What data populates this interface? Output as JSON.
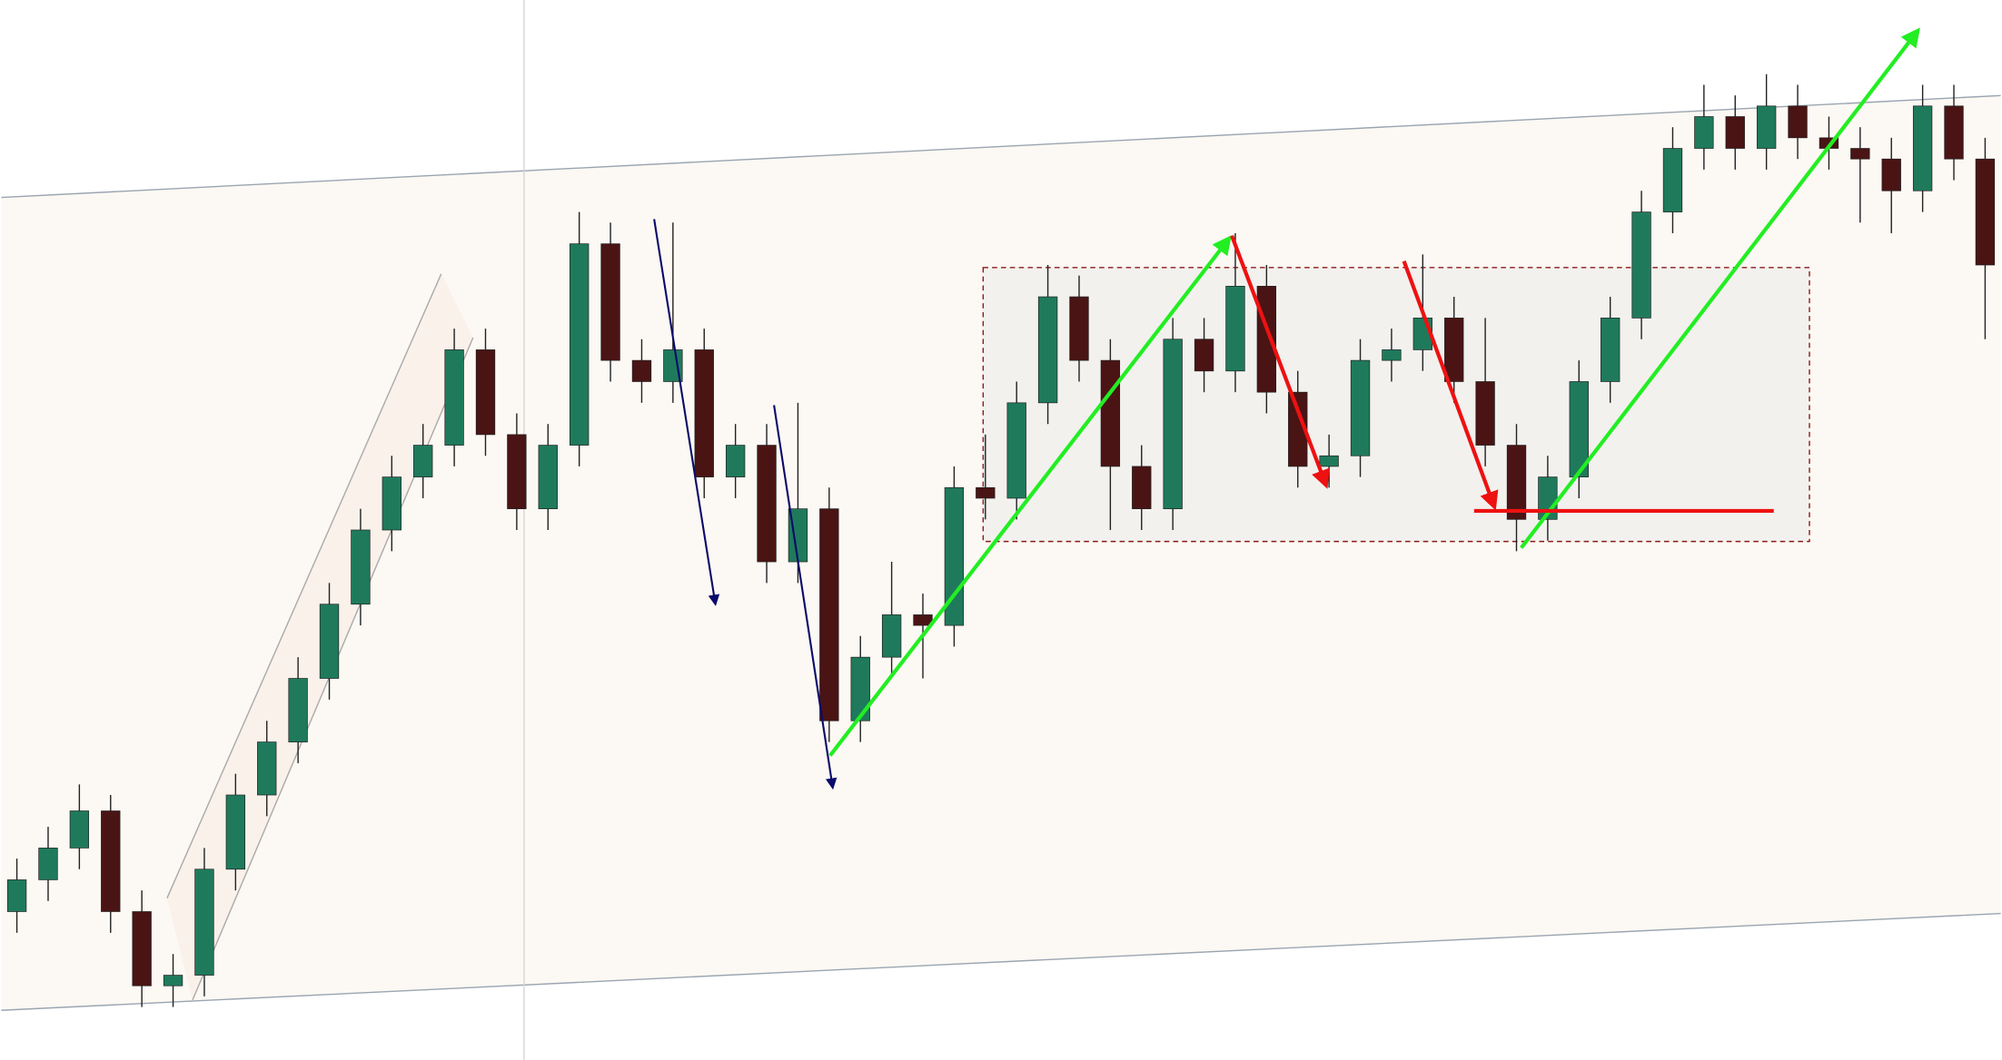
{
  "chart_data": {
    "type": "candlestick",
    "ohlc": [
      [
        14,
        19,
        12,
        17
      ],
      [
        17,
        22,
        15,
        20
      ],
      [
        20,
        26,
        18,
        23.5
      ],
      [
        23.5,
        25,
        12,
        14
      ],
      [
        14,
        16,
        5,
        7
      ],
      [
        7,
        10,
        5,
        8
      ],
      [
        8,
        20,
        6,
        18
      ],
      [
        18,
        27,
        16,
        25
      ],
      [
        25,
        32,
        23,
        30
      ],
      [
        30,
        38,
        28,
        36
      ],
      [
        36,
        45,
        34,
        43
      ],
      [
        43,
        52,
        41,
        50
      ],
      [
        50,
        57,
        48,
        55
      ],
      [
        55,
        60,
        53,
        58
      ],
      [
        58,
        69,
        56,
        67
      ],
      [
        67,
        69,
        57,
        59
      ],
      [
        59,
        61,
        50,
        52
      ],
      [
        52,
        60,
        50,
        58
      ],
      [
        58,
        80,
        56,
        77
      ],
      [
        77,
        79,
        64,
        66
      ],
      [
        66,
        68,
        62,
        64
      ],
      [
        64,
        79,
        62,
        67
      ],
      [
        67,
        69,
        53,
        55
      ],
      [
        55,
        60,
        53,
        58
      ],
      [
        58,
        60,
        45,
        47
      ],
      [
        47,
        62,
        45,
        52
      ],
      [
        52,
        54,
        30,
        32
      ],
      [
        32,
        40,
        30,
        38
      ],
      [
        38,
        47,
        36,
        42
      ],
      [
        42,
        44,
        36,
        41
      ],
      [
        41,
        56,
        39,
        54
      ],
      [
        54,
        59,
        51,
        53
      ],
      [
        53,
        64,
        51,
        62
      ],
      [
        62,
        75,
        60,
        72
      ],
      [
        72,
        74,
        64,
        66
      ],
      [
        66,
        68,
        50,
        56
      ],
      [
        56,
        58,
        50,
        52
      ],
      [
        52,
        70,
        50,
        68
      ],
      [
        68,
        70,
        63,
        65
      ],
      [
        65,
        78,
        63,
        73
      ],
      [
        73,
        75,
        61,
        63
      ],
      [
        63,
        65,
        54,
        56
      ],
      [
        56,
        59,
        54,
        57
      ],
      [
        57,
        68,
        55,
        66
      ],
      [
        66,
        69,
        64,
        67
      ],
      [
        67,
        76,
        65,
        70
      ],
      [
        70,
        72,
        62,
        64
      ],
      [
        64,
        70,
        56,
        58
      ],
      [
        58,
        60,
        48,
        51
      ],
      [
        51,
        57,
        49,
        55
      ],
      [
        55,
        66,
        53,
        64
      ],
      [
        64,
        72,
        62,
        70
      ],
      [
        70,
        82,
        68,
        80
      ],
      [
        80,
        88,
        78,
        86
      ],
      [
        86,
        92,
        84,
        89
      ],
      [
        89,
        91,
        84,
        86
      ],
      [
        86,
        93,
        84,
        90
      ],
      [
        90,
        92,
        85,
        87
      ],
      [
        87,
        89,
        84,
        86
      ],
      [
        86,
        88,
        79,
        85
      ],
      [
        85,
        87,
        78,
        82
      ],
      [
        82,
        92,
        80,
        90
      ],
      [
        90,
        92,
        83,
        85
      ],
      [
        85,
        87,
        68,
        75
      ]
    ],
    "up_color": "#1f7a5c",
    "down_color": "#4a1414",
    "ylim": [
      0,
      100
    ]
  }
}
